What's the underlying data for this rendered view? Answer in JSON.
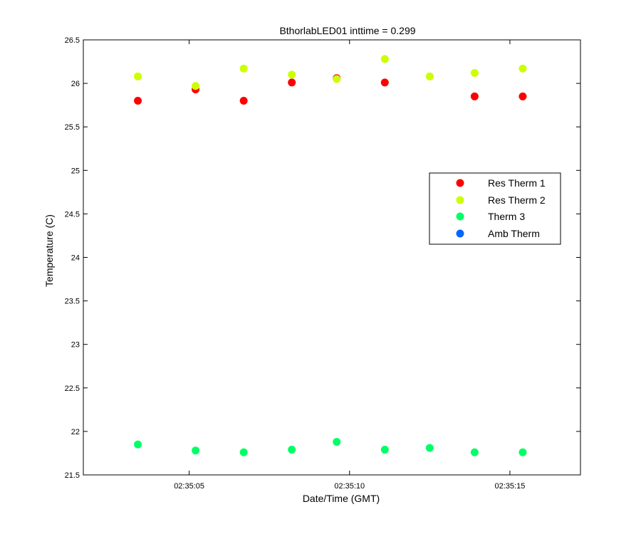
{
  "chart_data": {
    "type": "scatter",
    "title": "BthorlabLED01 inttime = 0.299",
    "xlabel": "Date/Time (GMT)",
    "ylabel": "Temperature (C)",
    "xlim_seconds": [
      1.7,
      17.2
    ],
    "ylim": [
      21.5,
      26.5
    ],
    "yticks": [
      21.5,
      22,
      22.5,
      23,
      23.5,
      24,
      24.5,
      25,
      25.5,
      26,
      26.5
    ],
    "ytick_labels": [
      "21.5",
      "22",
      "22.5",
      "23",
      "23.5",
      "24",
      "24.5",
      "25",
      "25.5",
      "26",
      "26.5"
    ],
    "xticks_seconds": [
      5,
      10,
      15
    ],
    "xtick_labels": [
      "02:35:05",
      "02:35:10",
      "02:35:15"
    ],
    "grid": false,
    "legend_position": "right",
    "series": [
      {
        "name": "Res Therm 1",
        "color": "#ff0000",
        "x_seconds": [
          3.4,
          5.2,
          6.7,
          8.2,
          9.6,
          11.1,
          13.9,
          15.4
        ],
        "y": [
          25.8,
          25.93,
          25.8,
          26.01,
          26.06,
          26.01,
          25.85,
          25.85
        ]
      },
      {
        "name": "Res Therm 2",
        "color": "#ccff00",
        "x_seconds": [
          3.4,
          5.2,
          6.7,
          8.2,
          9.6,
          11.1,
          12.5,
          13.9,
          15.4
        ],
        "y": [
          26.08,
          25.97,
          26.17,
          26.1,
          26.05,
          26.28,
          26.08,
          26.12,
          26.17
        ]
      },
      {
        "name": "Therm 3",
        "color": "#00ff66",
        "x_seconds": [
          3.4,
          5.2,
          6.7,
          8.2,
          9.6,
          11.1,
          12.5,
          13.9,
          15.4
        ],
        "y": [
          21.85,
          21.78,
          21.76,
          21.79,
          21.88,
          21.79,
          21.81,
          21.76,
          21.76
        ]
      },
      {
        "name": "Amb Therm",
        "color": "#0066ff",
        "x_seconds": [],
        "y": []
      }
    ]
  }
}
